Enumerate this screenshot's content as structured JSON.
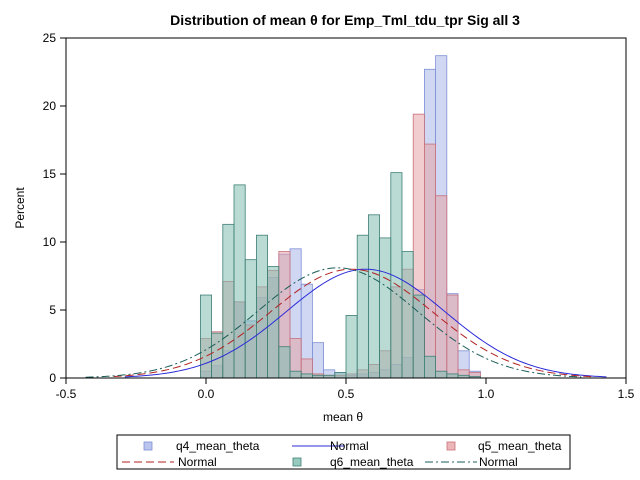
{
  "chart_data": {
    "type": "bar",
    "title": "Distribution of mean θ for Emp_Tml_tdu_tpr Sig all 3",
    "xlabel": "mean θ",
    "ylabel": "Percent",
    "xlim": [
      -0.5,
      1.5
    ],
    "ylim": [
      0,
      25
    ],
    "xticks": [
      -0.5,
      0.0,
      0.5,
      1.0,
      1.5
    ],
    "xtick_labels": [
      "-0.5",
      "0.0",
      "0.5",
      "1.0",
      "1.5"
    ],
    "yticks": [
      0,
      5,
      10,
      15,
      20,
      25
    ],
    "ytick_labels": [
      "0",
      "5",
      "10",
      "15",
      "20",
      "25"
    ],
    "bin_width": 0.04,
    "grid": false,
    "legend_position": "bottom",
    "series": [
      {
        "name": "q4_mean_theta",
        "kind": "histogram",
        "color": "#7E8FD6",
        "fill": "#A8B6E8",
        "bin_centers": [
          0.0,
          0.04,
          0.08,
          0.12,
          0.16,
          0.2,
          0.24,
          0.28,
          0.32,
          0.36,
          0.4,
          0.44,
          0.48,
          0.52,
          0.56,
          0.6,
          0.64,
          0.68,
          0.72,
          0.76,
          0.8,
          0.84,
          0.88,
          0.92,
          0.96
        ],
        "values": [
          0.5,
          0.9,
          2.0,
          5.6,
          4.2,
          5.9,
          7.4,
          9.1,
          9.5,
          6.9,
          2.6,
          0.6,
          0.4,
          0.2,
          0.3,
          0.4,
          0.6,
          1.0,
          1.5,
          6.5,
          22.7,
          23.7,
          6.2,
          2.0,
          0.5
        ]
      },
      {
        "name": "Normal",
        "kind": "normal",
        "color": "#2B2BD9",
        "dash": "solid",
        "mean": 0.57,
        "sd": 0.285,
        "peak": 8.0,
        "x_range": [
          -0.29,
          1.43
        ]
      },
      {
        "name": "q5_mean_theta",
        "kind": "histogram",
        "color": "#C9707A",
        "fill": "#E8A4A8",
        "bin_centers": [
          0.0,
          0.04,
          0.08,
          0.12,
          0.16,
          0.2,
          0.24,
          0.28,
          0.32,
          0.36,
          0.4,
          0.44,
          0.48,
          0.52,
          0.56,
          0.6,
          0.64,
          0.68,
          0.72,
          0.76,
          0.8,
          0.84,
          0.88,
          0.92,
          0.96
        ],
        "values": [
          2.9,
          3.4,
          7.1,
          5.6,
          3.9,
          6.7,
          7.9,
          9.3,
          2.9,
          1.4,
          0.3,
          0.2,
          0.2,
          0.3,
          0.6,
          1.0,
          2.0,
          6.7,
          8.0,
          19.4,
          17.2,
          13.4,
          6.1,
          0.6,
          0.4
        ]
      },
      {
        "name": "Normal",
        "kind": "normal",
        "color": "#B22222",
        "dash": "dashed",
        "mean": 0.52,
        "sd": 0.29,
        "peak": 8.0,
        "x_range": [
          -0.33,
          1.38
        ]
      },
      {
        "name": "q6_mean_theta",
        "kind": "histogram",
        "color": "#3D7F74",
        "fill": "#7FBDB0",
        "bin_centers": [
          0.0,
          0.04,
          0.08,
          0.12,
          0.16,
          0.2,
          0.24,
          0.28,
          0.32,
          0.36,
          0.4,
          0.44,
          0.48,
          0.52,
          0.56,
          0.6,
          0.64,
          0.68,
          0.72,
          0.76,
          0.8,
          0.84,
          0.88,
          0.92,
          0.96
        ],
        "values": [
          6.1,
          3.3,
          11.3,
          14.2,
          8.7,
          10.5,
          8.2,
          2.3,
          0.5,
          0.3,
          0.2,
          0.2,
          0.4,
          4.6,
          10.5,
          12.0,
          10.3,
          15.1,
          9.3,
          6.1,
          1.6,
          0.5,
          0.3,
          0.2,
          0.1
        ]
      },
      {
        "name": "Normal",
        "kind": "normal",
        "color": "#1B5E58",
        "dash": "dashdot",
        "mean": 0.47,
        "sd": 0.285,
        "peak": 8.1,
        "x_range": [
          -0.43,
          1.34
        ]
      }
    ]
  }
}
